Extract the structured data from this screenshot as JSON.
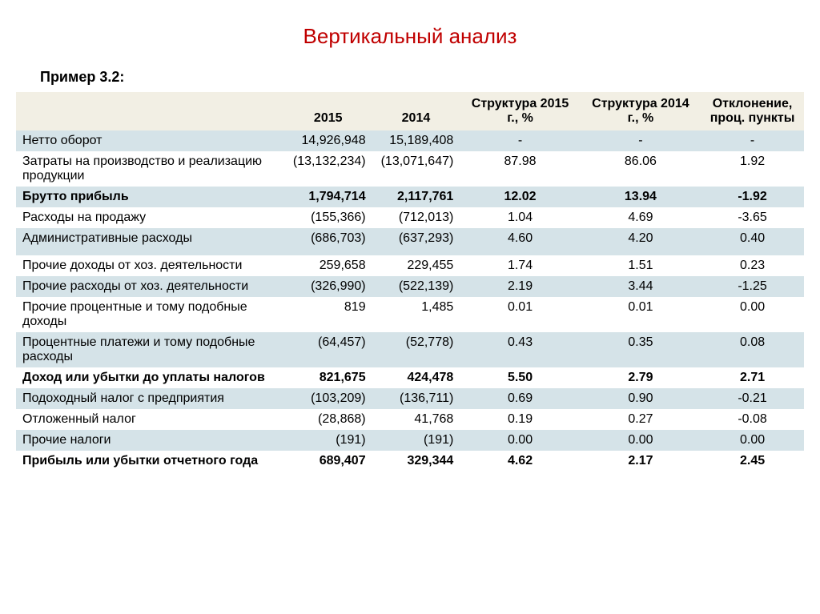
{
  "title": "Вертикальный анализ",
  "example_label": "Пример 3.2:",
  "table": {
    "headers": {
      "blank": "",
      "y2015": "2015",
      "y2014": "2014",
      "s2015": "Структура 2015 г., %",
      "s2014": "Структура 2014 г., %",
      "dev": "Отклонение, проц. пункты"
    },
    "rows": [
      {
        "label": "Нетто оборот",
        "y2015": "14,926,948",
        "y2014": "15,189,408",
        "s2015": "-",
        "s2014": "-",
        "dev": "-",
        "bold": false,
        "band": "even"
      },
      {
        "label": "Затраты на производство и реализацию продукции",
        "y2015": "(13,132,234)",
        "y2014": "(13,071,647)",
        "s2015": "87.98",
        "s2014": "86.06",
        "dev": "1.92",
        "bold": false,
        "band": "odd"
      },
      {
        "label": "Брутто прибыль",
        "y2015": "1,794,714",
        "y2014": "2,117,761",
        "s2015": "12.02",
        "s2014": "13.94",
        "dev": "-1.92",
        "bold": true,
        "band": "even"
      },
      {
        "label": "Расходы на продажу",
        "y2015": "(155,366)",
        "y2014": "(712,013)",
        "s2015": "1.04",
        "s2014": "4.69",
        "dev": "-3.65",
        "bold": false,
        "band": "odd"
      },
      {
        "label": "Административные расходы",
        "y2015": "(686,703)",
        "y2014": "(637,293)",
        "s2015": "4.60",
        "s2014": "4.20",
        "dev": "0.40",
        "bold": false,
        "band": "even",
        "spacer_after": true
      },
      {
        "label": "Прочие доходы от хоз. деятельности",
        "y2015": "259,658",
        "y2014": "229,455",
        "s2015": "1.74",
        "s2014": "1.51",
        "dev": "0.23",
        "bold": false,
        "band": "odd"
      },
      {
        "label": "Прочие расходы от хоз. деятельности",
        "y2015": "(326,990)",
        "y2014": "(522,139)",
        "s2015": "2.19",
        "s2014": "3.44",
        "dev": "-1.25",
        "bold": false,
        "band": "even"
      },
      {
        "label": "Прочие процентные и тому подобные доходы",
        "y2015": "819",
        "y2014": "1,485",
        "s2015": "0.01",
        "s2014": "0.01",
        "dev": "0.00",
        "bold": false,
        "band": "odd"
      },
      {
        "label": "Процентные платежи и тому подобные расходы",
        "y2015": "(64,457)",
        "y2014": "(52,778)",
        "s2015": "0.43",
        "s2014": "0.35",
        "dev": "0.08",
        "bold": false,
        "band": "even"
      },
      {
        "label": "Доход или убытки до уплаты налогов",
        "y2015": "821,675",
        "y2014": "424,478",
        "s2015": "5.50",
        "s2014": "2.79",
        "dev": "2.71",
        "bold": true,
        "band": "odd"
      },
      {
        "label": "Подоходный налог с предприятия",
        "y2015": "(103,209)",
        "y2014": "(136,711)",
        "s2015": "0.69",
        "s2014": "0.90",
        "dev": "-0.21",
        "bold": false,
        "band": "even"
      },
      {
        "label": "Отложенный налог",
        "y2015": "(28,868)",
        "y2014": "41,768",
        "s2015": "0.19",
        "s2014": "0.27",
        "dev": "-0.08",
        "bold": false,
        "band": "odd"
      },
      {
        "label": "Прочие налоги",
        "y2015": "(191)",
        "y2014": "(191)",
        "s2015": "0.00",
        "s2014": "0.00",
        "dev": "0.00",
        "bold": false,
        "band": "even"
      },
      {
        "label": "Прибыль или убытки отчетного года",
        "y2015": "689,407",
        "y2014": "329,344",
        "s2015": "4.62",
        "s2014": "2.17",
        "dev": "2.45",
        "bold": true,
        "band": "odd"
      }
    ]
  },
  "colors": {
    "title": "#c00000",
    "header_bg": "#f2efe4",
    "band_even": "#d5e3e8",
    "band_odd": "#ffffff"
  }
}
